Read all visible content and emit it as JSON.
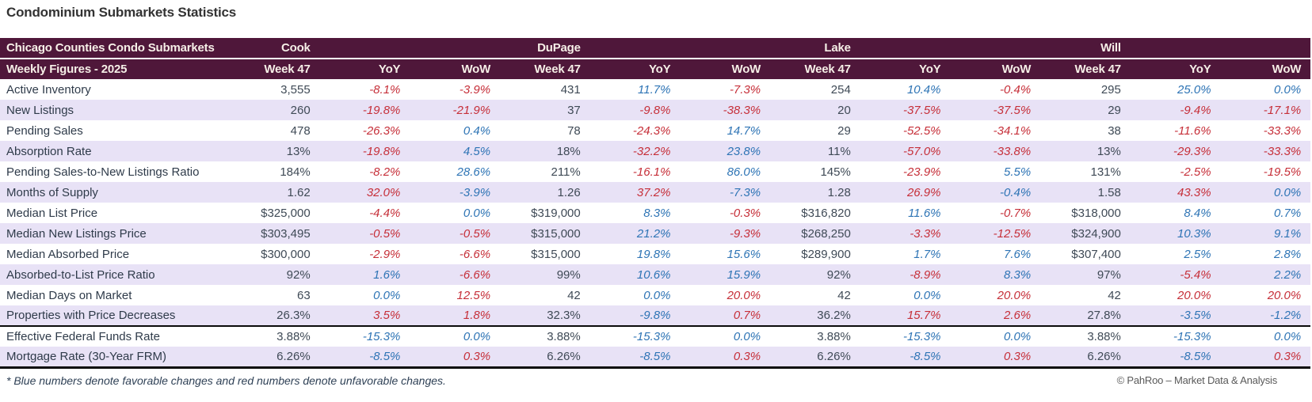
{
  "page_title": "Condominium Submarkets Statistics",
  "footnote": "* Blue numbers denote favorable changes and red numbers denote unfavorable changes.",
  "copyright": "© PahRoo – Market Data & Analysis",
  "colors": {
    "header_bg": "#4f173a",
    "header_text": "#f6efe7",
    "alt_row_bg": "#e8e2f6",
    "favorable_blue": "#2e74b5",
    "unfavorable_red": "#c62f39",
    "neutral_text": "#3f4a56"
  },
  "chart_data": {
    "type": "table",
    "title": "Condominium Submarkets Statistics",
    "corner_header_line1": "Chicago Counties Condo Submarkets",
    "corner_header_line2": "Weekly Figures - 2025",
    "county_groups": [
      "Cook",
      "DuPage",
      "Lake",
      "Will"
    ],
    "sub_columns": [
      "Week 47",
      "YoY",
      "WoW"
    ],
    "rows": [
      {
        "label": "Active Inventory",
        "cells": [
          [
            "3,555",
            "neutral"
          ],
          [
            "-8.1%",
            "red"
          ],
          [
            "-3.9%",
            "red"
          ],
          [
            "431",
            "neutral"
          ],
          [
            "11.7%",
            "blue"
          ],
          [
            "-7.3%",
            "red"
          ],
          [
            "254",
            "neutral"
          ],
          [
            "10.4%",
            "blue"
          ],
          [
            "-0.4%",
            "red"
          ],
          [
            "295",
            "neutral"
          ],
          [
            "25.0%",
            "blue"
          ],
          [
            "0.0%",
            "blue"
          ]
        ]
      },
      {
        "label": "New Listings",
        "cells": [
          [
            "260",
            "neutral"
          ],
          [
            "-19.8%",
            "red"
          ],
          [
            "-21.9%",
            "red"
          ],
          [
            "37",
            "neutral"
          ],
          [
            "-9.8%",
            "red"
          ],
          [
            "-38.3%",
            "red"
          ],
          [
            "20",
            "neutral"
          ],
          [
            "-37.5%",
            "red"
          ],
          [
            "-37.5%",
            "red"
          ],
          [
            "29",
            "neutral"
          ],
          [
            "-9.4%",
            "red"
          ],
          [
            "-17.1%",
            "red"
          ]
        ]
      },
      {
        "label": "Pending Sales",
        "cells": [
          [
            "478",
            "neutral"
          ],
          [
            "-26.3%",
            "red"
          ],
          [
            "0.4%",
            "blue"
          ],
          [
            "78",
            "neutral"
          ],
          [
            "-24.3%",
            "red"
          ],
          [
            "14.7%",
            "blue"
          ],
          [
            "29",
            "neutral"
          ],
          [
            "-52.5%",
            "red"
          ],
          [
            "-34.1%",
            "red"
          ],
          [
            "38",
            "neutral"
          ],
          [
            "-11.6%",
            "red"
          ],
          [
            "-33.3%",
            "red"
          ]
        ]
      },
      {
        "label": "Absorption Rate",
        "cells": [
          [
            "13%",
            "neutral"
          ],
          [
            "-19.8%",
            "red"
          ],
          [
            "4.5%",
            "blue"
          ],
          [
            "18%",
            "neutral"
          ],
          [
            "-32.2%",
            "red"
          ],
          [
            "23.8%",
            "blue"
          ],
          [
            "11%",
            "neutral"
          ],
          [
            "-57.0%",
            "red"
          ],
          [
            "-33.8%",
            "red"
          ],
          [
            "13%",
            "neutral"
          ],
          [
            "-29.3%",
            "red"
          ],
          [
            "-33.3%",
            "red"
          ]
        ]
      },
      {
        "label": "Pending Sales-to-New Listings Ratio",
        "cells": [
          [
            "184%",
            "neutral"
          ],
          [
            "-8.2%",
            "red"
          ],
          [
            "28.6%",
            "blue"
          ],
          [
            "211%",
            "neutral"
          ],
          [
            "-16.1%",
            "red"
          ],
          [
            "86.0%",
            "blue"
          ],
          [
            "145%",
            "neutral"
          ],
          [
            "-23.9%",
            "red"
          ],
          [
            "5.5%",
            "blue"
          ],
          [
            "131%",
            "neutral"
          ],
          [
            "-2.5%",
            "red"
          ],
          [
            "-19.5%",
            "red"
          ]
        ]
      },
      {
        "label": "Months of Supply",
        "cells": [
          [
            "1.62",
            "neutral"
          ],
          [
            "32.0%",
            "red"
          ],
          [
            "-3.9%",
            "blue"
          ],
          [
            "1.26",
            "neutral"
          ],
          [
            "37.2%",
            "red"
          ],
          [
            "-7.3%",
            "blue"
          ],
          [
            "1.28",
            "neutral"
          ],
          [
            "26.9%",
            "red"
          ],
          [
            "-0.4%",
            "blue"
          ],
          [
            "1.58",
            "neutral"
          ],
          [
            "43.3%",
            "red"
          ],
          [
            "0.0%",
            "blue"
          ]
        ]
      },
      {
        "label": "Median List Price",
        "cells": [
          [
            "$325,000",
            "neutral"
          ],
          [
            "-4.4%",
            "red"
          ],
          [
            "0.0%",
            "blue"
          ],
          [
            "$319,000",
            "neutral"
          ],
          [
            "8.3%",
            "blue"
          ],
          [
            "-0.3%",
            "red"
          ],
          [
            "$316,820",
            "neutral"
          ],
          [
            "11.6%",
            "blue"
          ],
          [
            "-0.7%",
            "red"
          ],
          [
            "$318,000",
            "neutral"
          ],
          [
            "8.4%",
            "blue"
          ],
          [
            "0.7%",
            "blue"
          ]
        ]
      },
      {
        "label": "Median New Listings Price",
        "cells": [
          [
            "$303,495",
            "neutral"
          ],
          [
            "-0.5%",
            "red"
          ],
          [
            "-0.5%",
            "red"
          ],
          [
            "$315,000",
            "neutral"
          ],
          [
            "21.2%",
            "blue"
          ],
          [
            "-9.3%",
            "red"
          ],
          [
            "$268,250",
            "neutral"
          ],
          [
            "-3.3%",
            "red"
          ],
          [
            "-12.5%",
            "red"
          ],
          [
            "$324,900",
            "neutral"
          ],
          [
            "10.3%",
            "blue"
          ],
          [
            "9.1%",
            "blue"
          ]
        ]
      },
      {
        "label": "Median Absorbed Price",
        "cells": [
          [
            "$300,000",
            "neutral"
          ],
          [
            "-2.9%",
            "red"
          ],
          [
            "-6.6%",
            "red"
          ],
          [
            "$315,000",
            "neutral"
          ],
          [
            "19.8%",
            "blue"
          ],
          [
            "15.6%",
            "blue"
          ],
          [
            "$289,900",
            "neutral"
          ],
          [
            "1.7%",
            "blue"
          ],
          [
            "7.6%",
            "blue"
          ],
          [
            "$307,400",
            "neutral"
          ],
          [
            "2.5%",
            "blue"
          ],
          [
            "2.8%",
            "blue"
          ]
        ]
      },
      {
        "label": "Absorbed-to-List Price Ratio",
        "cells": [
          [
            "92%",
            "neutral"
          ],
          [
            "1.6%",
            "blue"
          ],
          [
            "-6.6%",
            "red"
          ],
          [
            "99%",
            "neutral"
          ],
          [
            "10.6%",
            "blue"
          ],
          [
            "15.9%",
            "blue"
          ],
          [
            "92%",
            "neutral"
          ],
          [
            "-8.9%",
            "red"
          ],
          [
            "8.3%",
            "blue"
          ],
          [
            "97%",
            "neutral"
          ],
          [
            "-5.4%",
            "red"
          ],
          [
            "2.2%",
            "blue"
          ]
        ]
      },
      {
        "label": "Median Days on Market",
        "cells": [
          [
            "63",
            "neutral"
          ],
          [
            "0.0%",
            "blue"
          ],
          [
            "12.5%",
            "red"
          ],
          [
            "42",
            "neutral"
          ],
          [
            "0.0%",
            "blue"
          ],
          [
            "20.0%",
            "red"
          ],
          [
            "42",
            "neutral"
          ],
          [
            "0.0%",
            "blue"
          ],
          [
            "20.0%",
            "red"
          ],
          [
            "42",
            "neutral"
          ],
          [
            "20.0%",
            "red"
          ],
          [
            "20.0%",
            "red"
          ]
        ]
      },
      {
        "label": "Properties with Price Decreases",
        "rule_below": true,
        "cells": [
          [
            "26.3%",
            "neutral"
          ],
          [
            "3.5%",
            "red"
          ],
          [
            "1.8%",
            "red"
          ],
          [
            "32.3%",
            "neutral"
          ],
          [
            "-9.8%",
            "blue"
          ],
          [
            "0.7%",
            "red"
          ],
          [
            "36.2%",
            "neutral"
          ],
          [
            "15.7%",
            "red"
          ],
          [
            "2.6%",
            "red"
          ],
          [
            "27.8%",
            "neutral"
          ],
          [
            "-3.5%",
            "blue"
          ],
          [
            "-1.2%",
            "blue"
          ]
        ]
      },
      {
        "label": "Effective Federal Funds Rate",
        "cells": [
          [
            "3.88%",
            "neutral"
          ],
          [
            "-15.3%",
            "blue"
          ],
          [
            "0.0%",
            "blue"
          ],
          [
            "3.88%",
            "neutral"
          ],
          [
            "-15.3%",
            "blue"
          ],
          [
            "0.0%",
            "blue"
          ],
          [
            "3.88%",
            "neutral"
          ],
          [
            "-15.3%",
            "blue"
          ],
          [
            "0.0%",
            "blue"
          ],
          [
            "3.88%",
            "neutral"
          ],
          [
            "-15.3%",
            "blue"
          ],
          [
            "0.0%",
            "blue"
          ]
        ]
      },
      {
        "label": "Mortgage Rate (30-Year FRM)",
        "rule_below": true,
        "cells": [
          [
            "6.26%",
            "neutral"
          ],
          [
            "-8.5%",
            "blue"
          ],
          [
            "0.3%",
            "red"
          ],
          [
            "6.26%",
            "neutral"
          ],
          [
            "-8.5%",
            "blue"
          ],
          [
            "0.3%",
            "red"
          ],
          [
            "6.26%",
            "neutral"
          ],
          [
            "-8.5%",
            "blue"
          ],
          [
            "0.3%",
            "red"
          ],
          [
            "6.26%",
            "neutral"
          ],
          [
            "-8.5%",
            "blue"
          ],
          [
            "0.3%",
            "red"
          ]
        ]
      }
    ]
  }
}
